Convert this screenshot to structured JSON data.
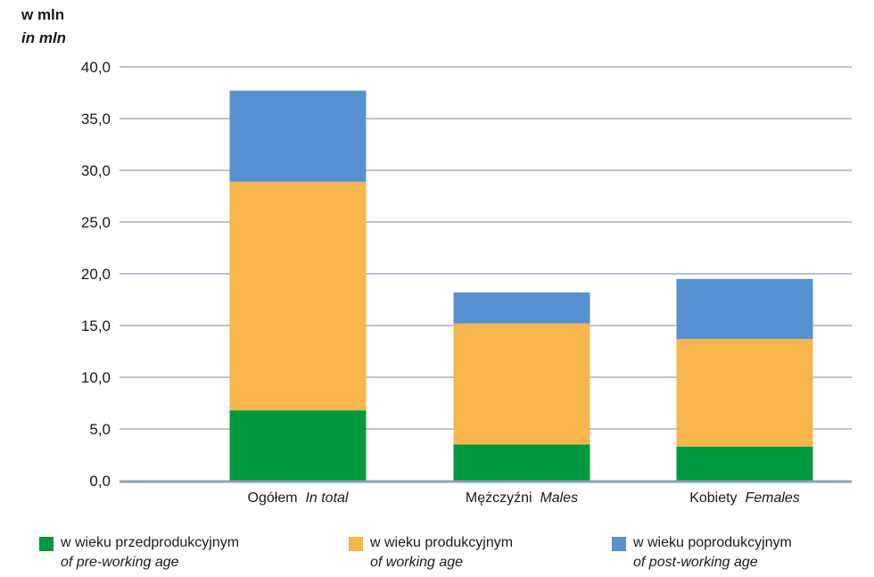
{
  "unit_label": {
    "pl": "w mln",
    "en": "in mln"
  },
  "chart_data": {
    "type": "bar",
    "stacked": true,
    "categories": [
      {
        "pl": "Ogółem",
        "en": "In total"
      },
      {
        "pl": "Mężczyźni",
        "en": "Males"
      },
      {
        "pl": "Kobiety",
        "en": "Females"
      }
    ],
    "series": [
      {
        "name_pl": "w wieku przedprodukcyjnym",
        "name_en": "of pre-working age",
        "color": "#009a3e",
        "values": [
          6.8,
          3.5,
          3.3
        ]
      },
      {
        "name_pl": "w wieku produkcyjnym",
        "name_en": "of working age",
        "color": "#f7b54b",
        "values": [
          22.1,
          11.7,
          10.4
        ]
      },
      {
        "name_pl": "w wieku poprodukcyjnym",
        "name_en": "of post-working age",
        "color": "#5591d0",
        "values": [
          8.8,
          3.0,
          5.8
        ]
      }
    ],
    "y_ticks": [
      "0,0",
      "5,0",
      "10,0",
      "15,0",
      "20,0",
      "25,0",
      "30,0",
      "35,0",
      "40,0"
    ],
    "ylim": [
      0,
      40
    ],
    "grid": true,
    "legend_position": "bottom"
  }
}
